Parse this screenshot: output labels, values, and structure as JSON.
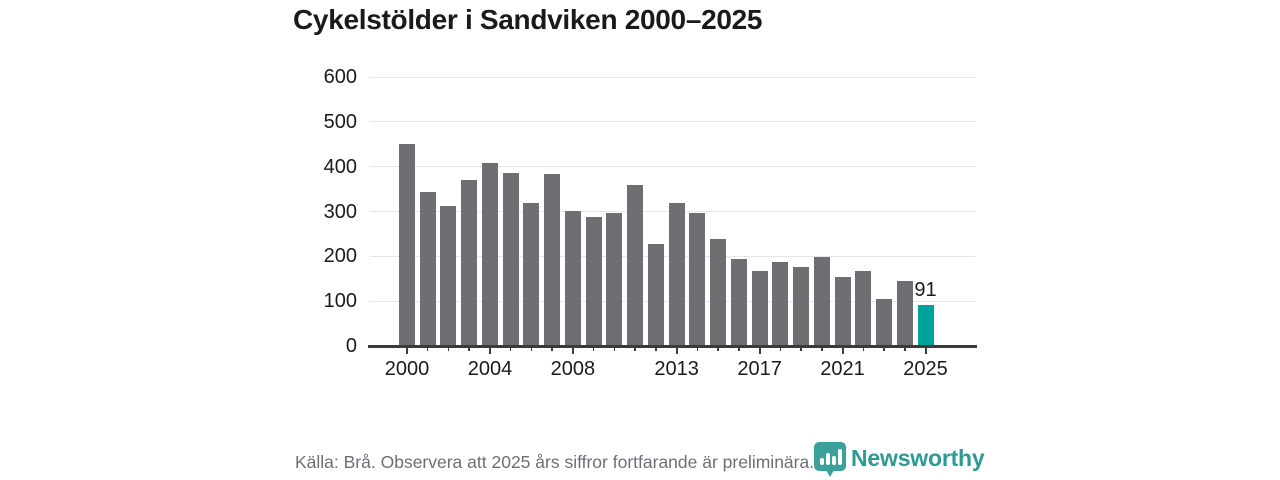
{
  "title": "Cykelstölder i Sandviken 2000–2025",
  "chart_data": {
    "type": "bar",
    "title": "Cykelstölder i Sandviken 2000–2025",
    "categories": [
      2000,
      2001,
      2002,
      2003,
      2004,
      2005,
      2006,
      2007,
      2008,
      2009,
      2010,
      2011,
      2012,
      2013,
      2014,
      2015,
      2016,
      2017,
      2018,
      2019,
      2020,
      2021,
      2022,
      2023,
      2024,
      2025
    ],
    "values": [
      450,
      344,
      312,
      371,
      408,
      386,
      319,
      383,
      301,
      287,
      297,
      360,
      227,
      320,
      297,
      238,
      195,
      168,
      187,
      176,
      199,
      153,
      168,
      105,
      145,
      91
    ],
    "highlight_index": 25,
    "highlight_value_label": "91",
    "xlabel": "",
    "ylabel": "",
    "ylim": [
      0,
      600
    ],
    "y_ticks": [
      0,
      100,
      200,
      300,
      400,
      500,
      600
    ],
    "x_tick_labels": [
      "2000",
      "2004",
      "2008",
      "2013",
      "2017",
      "2021",
      "2025"
    ],
    "x_tick_years": [
      2000,
      2004,
      2008,
      2013,
      2017,
      2021,
      2025
    ],
    "grid": true,
    "legend": false,
    "bar_color": "#6e6e73",
    "highlight_color": "#00a39b",
    "gridline_color": "#e6e6e6",
    "axis_color": "#3b3b3b"
  },
  "footer": {
    "source_note": "Källa: Brå. Observera att 2025 års siffror fortfarande är preliminära."
  },
  "branding": {
    "logo_text": "Newsworthy",
    "logo_color": "#2d9a93",
    "logo_icon": "bar-chart-pin-icon"
  }
}
